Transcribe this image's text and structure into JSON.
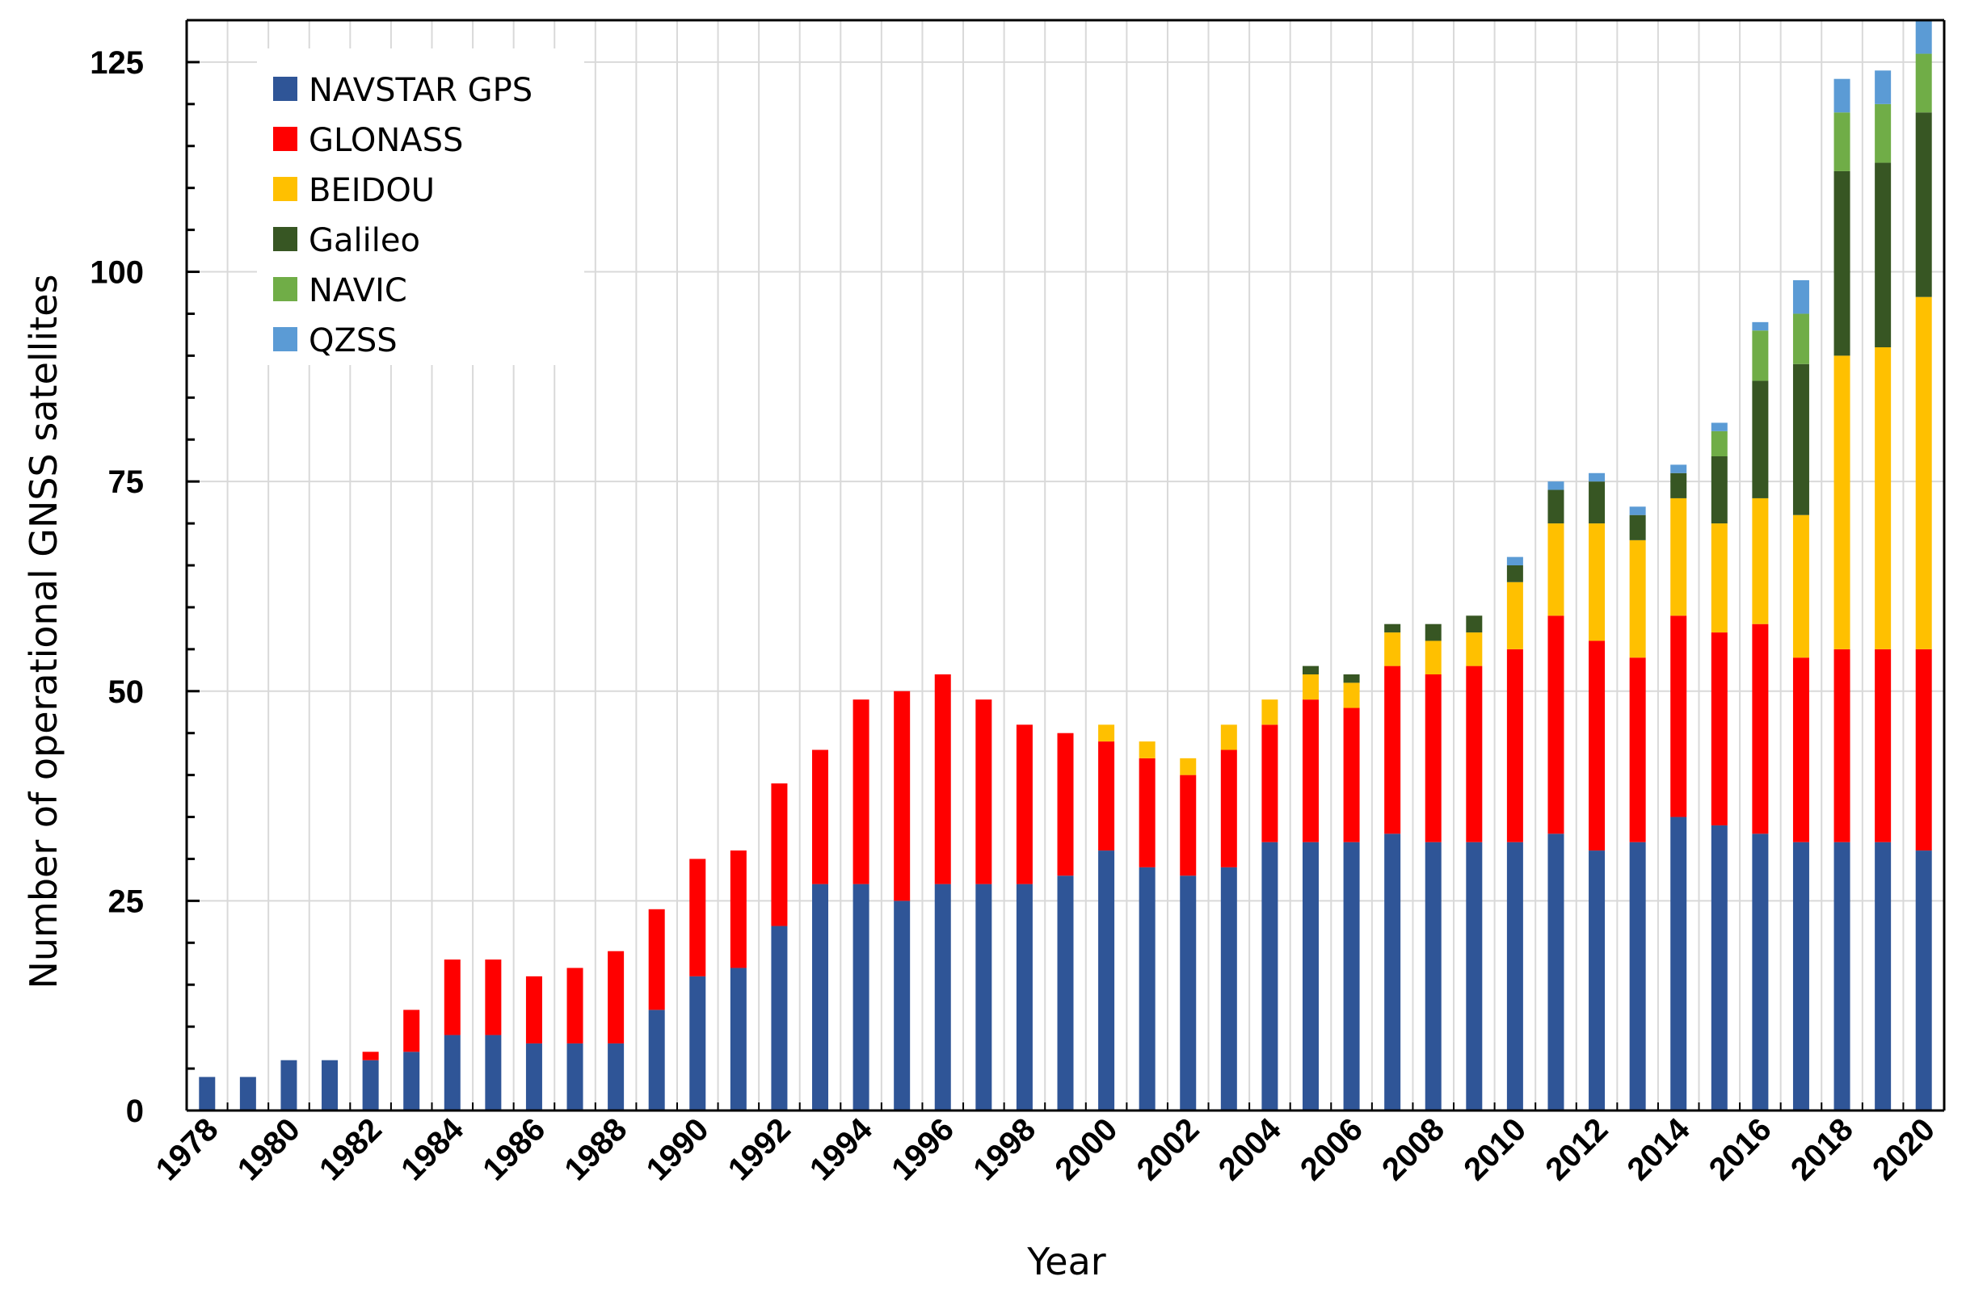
{
  "chart_data": {
    "type": "bar",
    "stacked": true,
    "xlabel": "Year",
    "ylabel": "Number of operational GNSS satellites",
    "ylim": [
      0,
      130
    ],
    "yticks": [
      0,
      25,
      50,
      75,
      100,
      125
    ],
    "grid": true,
    "legend_position": "top-left",
    "categories": [
      "1978",
      "1979",
      "1980",
      "1981",
      "1982",
      "1983",
      "1984",
      "1985",
      "1986",
      "1987",
      "1988",
      "1989",
      "1990",
      "1991",
      "1992",
      "1993",
      "1994",
      "1995",
      "1996",
      "1997",
      "1998",
      "1999",
      "2000",
      "2001",
      "2002",
      "2003",
      "2004",
      "2005",
      "2006",
      "2007",
      "2008",
      "2009",
      "2010",
      "2011",
      "2012",
      "2013",
      "2014",
      "2015",
      "2016",
      "2017",
      "2018",
      "2019",
      "2020"
    ],
    "tick_labels": [
      "1978",
      "1980",
      "1982",
      "1984",
      "1986",
      "1988",
      "1990",
      "1992",
      "1994",
      "1996",
      "1998",
      "2000",
      "2002",
      "2004",
      "2006",
      "2008",
      "2010",
      "2012",
      "2014",
      "2016",
      "2018",
      "2020"
    ],
    "series": [
      {
        "name": "NAVSTAR GPS",
        "color": "#2F5597",
        "values": [
          4,
          4,
          6,
          6,
          6,
          7,
          9,
          9,
          8,
          8,
          8,
          12,
          16,
          17,
          22,
          27,
          27,
          25,
          27,
          27,
          27,
          28,
          31,
          29,
          28,
          29,
          32,
          32,
          32,
          33,
          32,
          32,
          32,
          33,
          31,
          32,
          35,
          34,
          33,
          32,
          32,
          32,
          31
        ]
      },
      {
        "name": "GLONASS",
        "color": "#FF0000",
        "values": [
          0,
          0,
          0,
          0,
          1,
          5,
          9,
          9,
          8,
          9,
          11,
          12,
          14,
          14,
          17,
          16,
          22,
          25,
          25,
          22,
          19,
          17,
          13,
          13,
          12,
          14,
          14,
          17,
          16,
          20,
          20,
          21,
          23,
          26,
          25,
          22,
          24,
          23,
          25,
          22,
          23,
          23,
          24
        ]
      },
      {
        "name": "BEIDOU",
        "color": "#FFC000",
        "values": [
          0,
          0,
          0,
          0,
          0,
          0,
          0,
          0,
          0,
          0,
          0,
          0,
          0,
          0,
          0,
          0,
          0,
          0,
          0,
          0,
          0,
          0,
          2,
          2,
          2,
          3,
          3,
          3,
          3,
          4,
          4,
          4,
          8,
          11,
          14,
          14,
          14,
          13,
          15,
          17,
          35,
          36,
          42
        ]
      },
      {
        "name": "Galileo",
        "color": "#375623",
        "values": [
          0,
          0,
          0,
          0,
          0,
          0,
          0,
          0,
          0,
          0,
          0,
          0,
          0,
          0,
          0,
          0,
          0,
          0,
          0,
          0,
          0,
          0,
          0,
          0,
          0,
          0,
          0,
          1,
          1,
          1,
          2,
          2,
          2,
          4,
          5,
          3,
          3,
          8,
          14,
          18,
          22,
          22,
          22
        ]
      },
      {
        "name": "NAVIC",
        "color": "#70AD47",
        "values": [
          0,
          0,
          0,
          0,
          0,
          0,
          0,
          0,
          0,
          0,
          0,
          0,
          0,
          0,
          0,
          0,
          0,
          0,
          0,
          0,
          0,
          0,
          0,
          0,
          0,
          0,
          0,
          0,
          0,
          0,
          0,
          0,
          0,
          0,
          0,
          0,
          0,
          3,
          6,
          6,
          7,
          7,
          7
        ]
      },
      {
        "name": "QZSS",
        "color": "#5B9BD5",
        "values": [
          0,
          0,
          0,
          0,
          0,
          0,
          0,
          0,
          0,
          0,
          0,
          0,
          0,
          0,
          0,
          0,
          0,
          0,
          0,
          0,
          0,
          0,
          0,
          0,
          0,
          0,
          0,
          0,
          0,
          0,
          0,
          0,
          1,
          1,
          1,
          1,
          1,
          1,
          1,
          4,
          4,
          4,
          4
        ]
      }
    ]
  }
}
